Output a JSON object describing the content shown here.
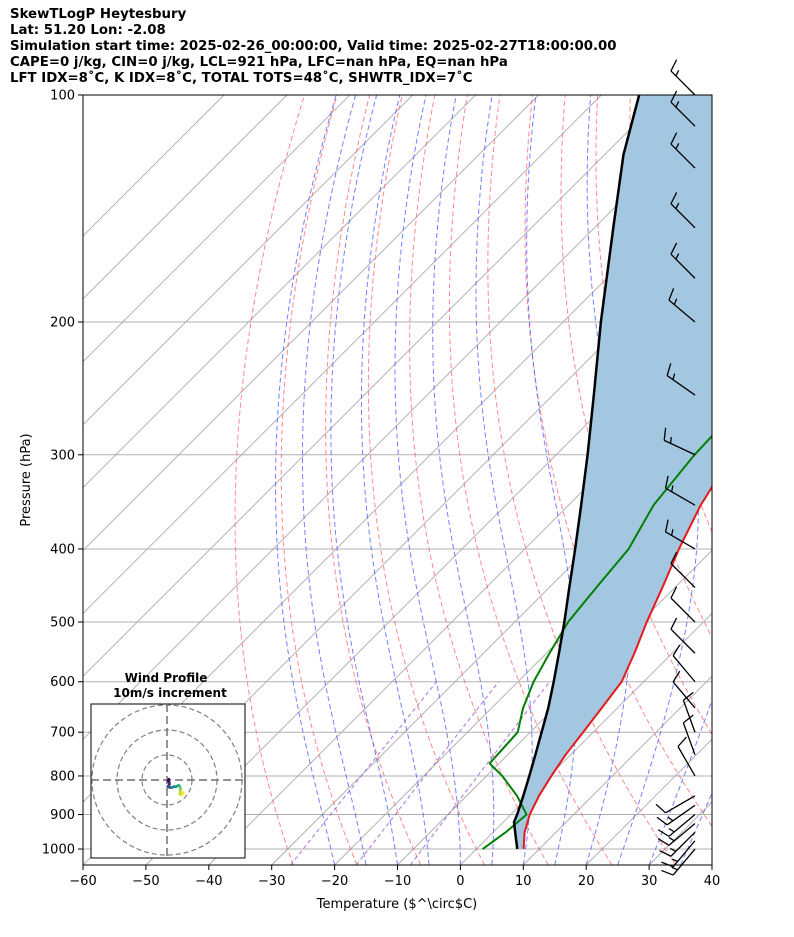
{
  "header": {
    "line1": "SkewTLogP Heytesbury",
    "line2": "Lat: 51.20   Lon: -2.08",
    "line3": "Simulation start time: 2025-02-26_00:00:00, Valid time: 2025-02-27T18:00:00.00",
    "line4": "CAPE=0 j/kg, CIN=0 j/kg, LCL=921 hPa, LFC=nan hPa, EQ=nan hPa",
    "line5": "LFT IDX=8˚C, K IDX=8˚C, TOTAL TOTS=48˚C, SHWTR_IDX=7˚C"
  },
  "chart_data": {
    "type": "skew-t log-p",
    "xlabel": "Temperature ($^\\circ$C)",
    "ylabel": "Pressure (hPa)",
    "xlim": [
      -60,
      40
    ],
    "ylim_hpa": [
      1050,
      100
    ],
    "x_ticks": [
      "−60",
      "−50",
      "−40",
      "−30",
      "−20",
      "−10",
      "0",
      "10",
      "20",
      "30",
      "40"
    ],
    "x_tick_values": [
      -60,
      -50,
      -40,
      -30,
      -20,
      -10,
      0,
      10,
      20,
      30,
      40
    ],
    "y_ticks": [
      "100",
      "200",
      "300",
      "400",
      "500",
      "600",
      "700",
      "800",
      "900",
      "1000"
    ],
    "y_tick_values": [
      100,
      200,
      300,
      400,
      500,
      600,
      700,
      800,
      900,
      1000
    ],
    "grid": true,
    "colors": {
      "temperature": "#e41a1c",
      "dewpoint": "#008000",
      "parcel": "#000000",
      "fill": "#a3c7e0",
      "isotherm": "#aaaaaa",
      "dry_adiabat": "#ff6060",
      "moist_adiabat": "#5060ff",
      "mixing_ratio": "#9b4fd8"
    },
    "series": [
      {
        "key": "temperature",
        "points": [
          [
            1000,
            7.5
          ],
          [
            950,
            5
          ],
          [
            900,
            3
          ],
          [
            850,
            1.5
          ],
          [
            800,
            0.3
          ],
          [
            750,
            -0.8
          ],
          [
            700,
            -1.6
          ],
          [
            650,
            -2.5
          ],
          [
            600,
            -3.5
          ],
          [
            550,
            -6
          ],
          [
            500,
            -9
          ],
          [
            450,
            -12
          ],
          [
            400,
            -15.5
          ],
          [
            350,
            -19
          ],
          [
            300,
            -22
          ],
          [
            280,
            -22.5
          ],
          [
            260,
            -22
          ],
          [
            240,
            -20.5
          ],
          [
            220,
            -18
          ],
          [
            200,
            -15.5
          ],
          [
            180,
            -14.5
          ],
          [
            160,
            -13.5
          ],
          [
            140,
            -12.5
          ],
          [
            120,
            -11.5
          ],
          [
            110,
            -11
          ],
          [
            100,
            -10
          ]
        ]
      },
      {
        "key": "dewpoint",
        "points": [
          [
            1000,
            1
          ],
          [
            950,
            2
          ],
          [
            900,
            2.5
          ],
          [
            850,
            -2
          ],
          [
            800,
            -7.5
          ],
          [
            770,
            -11.5
          ],
          [
            700,
            -12
          ],
          [
            650,
            -15
          ],
          [
            600,
            -17.5
          ],
          [
            550,
            -19.5
          ],
          [
            500,
            -21.5
          ],
          [
            450,
            -22.5
          ],
          [
            400,
            -23.5
          ],
          [
            350,
            -26.5
          ],
          [
            300,
            -28
          ],
          [
            260,
            -28.5
          ],
          [
            230,
            -30
          ],
          [
            200,
            -35
          ],
          [
            180,
            -35.5
          ],
          [
            160,
            -35
          ],
          [
            140,
            -34
          ],
          [
            120,
            -33
          ],
          [
            100,
            -32
          ]
        ]
      },
      {
        "key": "parcel",
        "points": [
          [
            1000,
            6.5
          ],
          [
            950,
            3.5
          ],
          [
            921,
            1.7
          ],
          [
            900,
            1
          ],
          [
            850,
            -1
          ],
          [
            800,
            -3.2
          ],
          [
            750,
            -5.6
          ],
          [
            700,
            -8.2
          ],
          [
            650,
            -11
          ],
          [
            600,
            -14.3
          ],
          [
            550,
            -18
          ],
          [
            500,
            -22.1
          ],
          [
            450,
            -26.8
          ],
          [
            400,
            -32
          ],
          [
            350,
            -38
          ],
          [
            300,
            -45
          ],
          [
            250,
            -53.5
          ],
          [
            200,
            -64
          ],
          [
            150,
            -77
          ],
          [
            120,
            -87
          ],
          [
            100,
            -94
          ]
        ]
      }
    ],
    "wind_barbs": [
      {
        "p": 1000,
        "speed_kt": 15,
        "dir_deg": 220
      },
      {
        "p": 975,
        "speed_kt": 15,
        "dir_deg": 220
      },
      {
        "p": 950,
        "speed_kt": 15,
        "dir_deg": 225
      },
      {
        "p": 925,
        "speed_kt": 15,
        "dir_deg": 230
      },
      {
        "p": 900,
        "speed_kt": 15,
        "dir_deg": 230
      },
      {
        "p": 875,
        "speed_kt": 15,
        "dir_deg": 235
      },
      {
        "p": 850,
        "speed_kt": 10,
        "dir_deg": 240
      },
      {
        "p": 800,
        "speed_kt": 10,
        "dir_deg": 330
      },
      {
        "p": 750,
        "speed_kt": 10,
        "dir_deg": 340
      },
      {
        "p": 700,
        "speed_kt": 10,
        "dir_deg": 340
      },
      {
        "p": 650,
        "speed_kt": 10,
        "dir_deg": 320
      },
      {
        "p": 600,
        "speed_kt": 10,
        "dir_deg": 320
      },
      {
        "p": 550,
        "speed_kt": 10,
        "dir_deg": 315
      },
      {
        "p": 500,
        "speed_kt": 10,
        "dir_deg": 315
      },
      {
        "p": 450,
        "speed_kt": 10,
        "dir_deg": 315
      },
      {
        "p": 400,
        "speed_kt": 15,
        "dir_deg": 300
      },
      {
        "p": 350,
        "speed_kt": 15,
        "dir_deg": 300
      },
      {
        "p": 300,
        "speed_kt": 15,
        "dir_deg": 295
      },
      {
        "p": 250,
        "speed_kt": 15,
        "dir_deg": 305
      },
      {
        "p": 200,
        "speed_kt": 15,
        "dir_deg": 310
      },
      {
        "p": 175,
        "speed_kt": 15,
        "dir_deg": 315
      },
      {
        "p": 150,
        "speed_kt": 15,
        "dir_deg": 315
      },
      {
        "p": 125,
        "speed_kt": 15,
        "dir_deg": 315
      },
      {
        "p": 110,
        "speed_kt": 15,
        "dir_deg": 315
      },
      {
        "p": 100,
        "speed_kt": 15,
        "dir_deg": 315
      }
    ],
    "hodograph": {
      "title_line1": "Wind Profile",
      "title_line2": "10m/s increment",
      "ring_increment_ms": 10,
      "rings": 3,
      "points_uv": [
        [
          6.5,
          -5
        ],
        [
          6,
          -5.8
        ],
        [
          5.5,
          -6
        ],
        [
          5.2,
          -5.6
        ],
        [
          5.3,
          -4.8
        ],
        [
          5.4,
          -3.8
        ],
        [
          5.3,
          -3.0
        ],
        [
          5.0,
          -2.3
        ],
        [
          4.6,
          -2.1
        ],
        [
          4.2,
          -2.4
        ],
        [
          3.6,
          -2.7
        ],
        [
          3.0,
          -2.6
        ],
        [
          2.5,
          -2.8
        ],
        [
          1.9,
          -3.0
        ],
        [
          1.2,
          -3.0
        ],
        [
          0.6,
          -2.9
        ],
        [
          0.3,
          -2.6
        ],
        [
          0.7,
          -2.2
        ],
        [
          1.0,
          -1.6
        ],
        [
          0.9,
          -0.9
        ],
        [
          0.6,
          -0.5
        ],
        [
          0.5,
          -0.2
        ],
        [
          0.8,
          0.3
        ]
      ]
    }
  }
}
